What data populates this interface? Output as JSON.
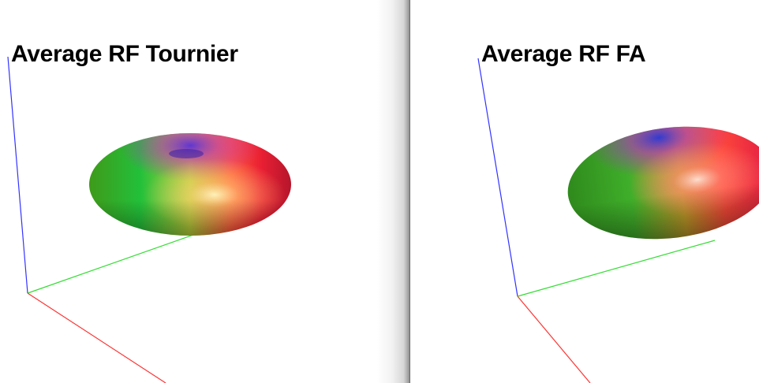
{
  "panels": [
    {
      "title": "Average RF Tournier"
    },
    {
      "title": "Average RF FA"
    }
  ],
  "colors": {
    "x_axis": "#ff3333",
    "y_axis": "#33dd33",
    "z_axis": "#3333ff",
    "background": "#ffffff"
  }
}
